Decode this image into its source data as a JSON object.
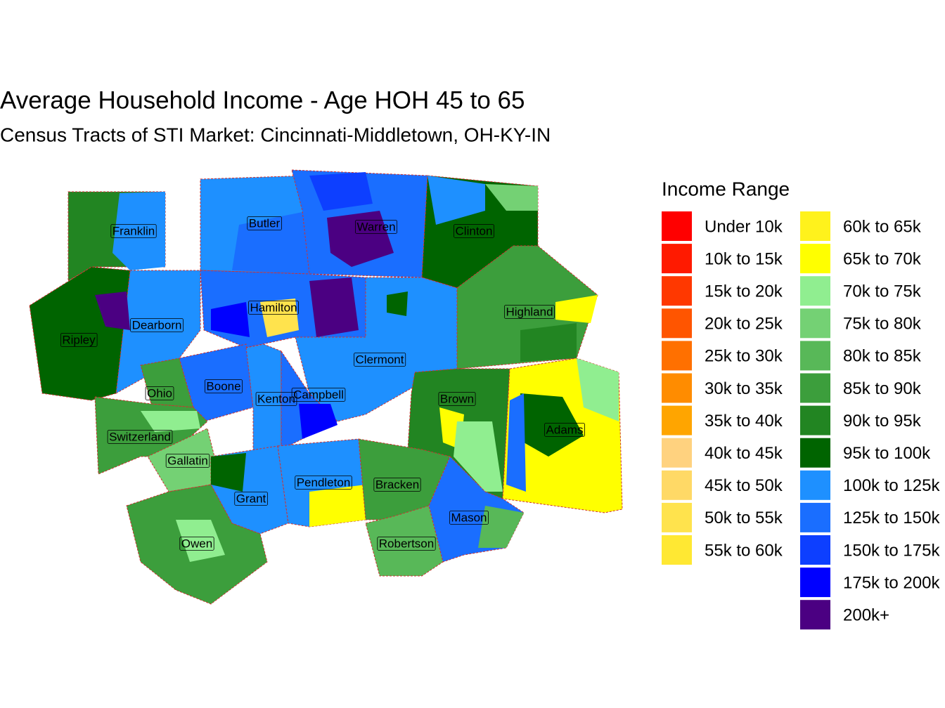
{
  "header": {
    "title": "Average Household Income - Age HOH 45 to 65",
    "subtitle": "Census Tracts of STI Market: Cincinnati-Middletown, OH-KY-IN"
  },
  "legend": {
    "title": "Income Range",
    "entries": [
      {
        "label": "Under 10k",
        "color": "#FF0000"
      },
      {
        "label": "10k to 15k",
        "color": "#FF1A00"
      },
      {
        "label": "15k to 20k",
        "color": "#FF3800"
      },
      {
        "label": "20k to 25k",
        "color": "#FF5500"
      },
      {
        "label": "25k to 30k",
        "color": "#FF7000"
      },
      {
        "label": "30k to 35k",
        "color": "#FF8C00"
      },
      {
        "label": "35k to 40k",
        "color": "#FFA500"
      },
      {
        "label": "40k to 45k",
        "color": "#FFD27F"
      },
      {
        "label": "45k to 50k",
        "color": "#FFD966"
      },
      {
        "label": "50k to 55k",
        "color": "#FFE34D"
      },
      {
        "label": "55k to 60k",
        "color": "#FFE833"
      },
      {
        "label": "60k to 65k",
        "color": "#FFF21C"
      },
      {
        "label": "65k to 70k",
        "color": "#FFFF00"
      },
      {
        "label": "70k to 75k",
        "color": "#90EE90"
      },
      {
        "label": "75k to 80k",
        "color": "#74D174"
      },
      {
        "label": "80k to 85k",
        "color": "#58B858"
      },
      {
        "label": "85k to 90k",
        "color": "#3C9E3C"
      },
      {
        "label": "90k to 95k",
        "color": "#228522"
      },
      {
        "label": "95k to 100k",
        "color": "#006400"
      },
      {
        "label": "100k to 125k",
        "color": "#1E90FF"
      },
      {
        "label": "125k to 150k",
        "color": "#1A6EFF"
      },
      {
        "label": "150k to 175k",
        "color": "#0D3FFF"
      },
      {
        "label": "175k to 200k",
        "color": "#0000FF"
      },
      {
        "label": "200k+",
        "color": "#4B0082"
      }
    ]
  },
  "map": {
    "counties": [
      "Franklin",
      "Butler",
      "Warren",
      "Clinton",
      "Hamilton",
      "Highland",
      "Dearborn",
      "Ripley",
      "Clermont",
      "Ohio",
      "Boone",
      "Kenton",
      "Campbell",
      "Brown",
      "Adams",
      "Switzerland",
      "Gallatin",
      "Pendleton",
      "Bracken",
      "Grant",
      "Mason",
      "Owen",
      "Robertson"
    ]
  }
}
